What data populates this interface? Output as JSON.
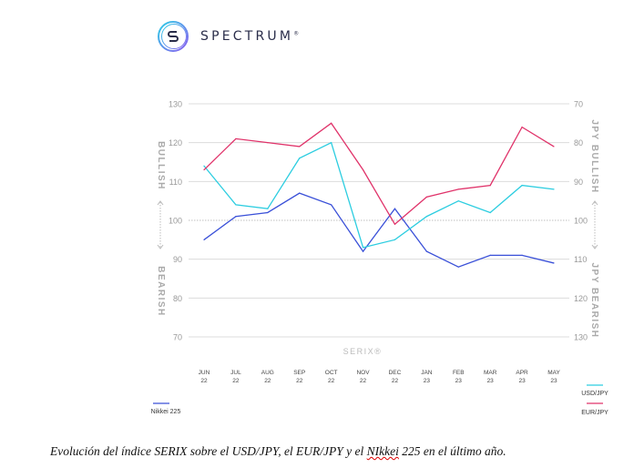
{
  "brand": {
    "name": "SPECTRUM",
    "mark": "®"
  },
  "chart_data": {
    "type": "line",
    "categories": [
      [
        "JUN",
        "22"
      ],
      [
        "JUL",
        "22"
      ],
      [
        "AUG",
        "22"
      ],
      [
        "SEP",
        "22"
      ],
      [
        "OCT",
        "22"
      ],
      [
        "NOV",
        "22"
      ],
      [
        "DEC",
        "22"
      ],
      [
        "JAN",
        "23"
      ],
      [
        "FEB",
        "23"
      ],
      [
        "MAR",
        "23"
      ],
      [
        "APR",
        "23"
      ],
      [
        "MAY",
        "23"
      ]
    ],
    "series": [
      {
        "name": "Nikkei 225",
        "color": "#3a50d8",
        "values": [
          95,
          101,
          102,
          107,
          104,
          92,
          103,
          92,
          88,
          91,
          91,
          89
        ]
      },
      {
        "name": "USD/JPY",
        "color": "#2ccde0",
        "values": [
          114,
          104,
          103,
          116,
          120,
          93,
          95,
          101,
          105,
          102,
          109,
          108
        ]
      },
      {
        "name": "EUR/JPY",
        "color": "#e0336a",
        "values": [
          113,
          121,
          120,
          119,
          125,
          113,
          99,
          106,
          108,
          109,
          124,
          119
        ]
      }
    ],
    "ylim": [
      70,
      130
    ],
    "yticks_left": [
      "130",
      "120",
      "110",
      "100",
      "90",
      "80",
      "70"
    ],
    "yticks_right": [
      "70",
      "80",
      "90",
      "100",
      "110",
      "120",
      "130"
    ],
    "xlabel": "SERIX®",
    "left_label_top": "BULLISH",
    "left_label_bottom": "BEARISH",
    "right_label_top": "JPY BULLISH",
    "right_label_bottom": "JPY BEARISH",
    "reference_line": 100,
    "grid": true,
    "legend_placement": "bottom"
  },
  "caption": {
    "before": "Evolución del índice SERIX sobre el USD/JPY, el EUR/JPY y el ",
    "flagged": "NIkkei",
    "after": " 225 en el último año."
  }
}
